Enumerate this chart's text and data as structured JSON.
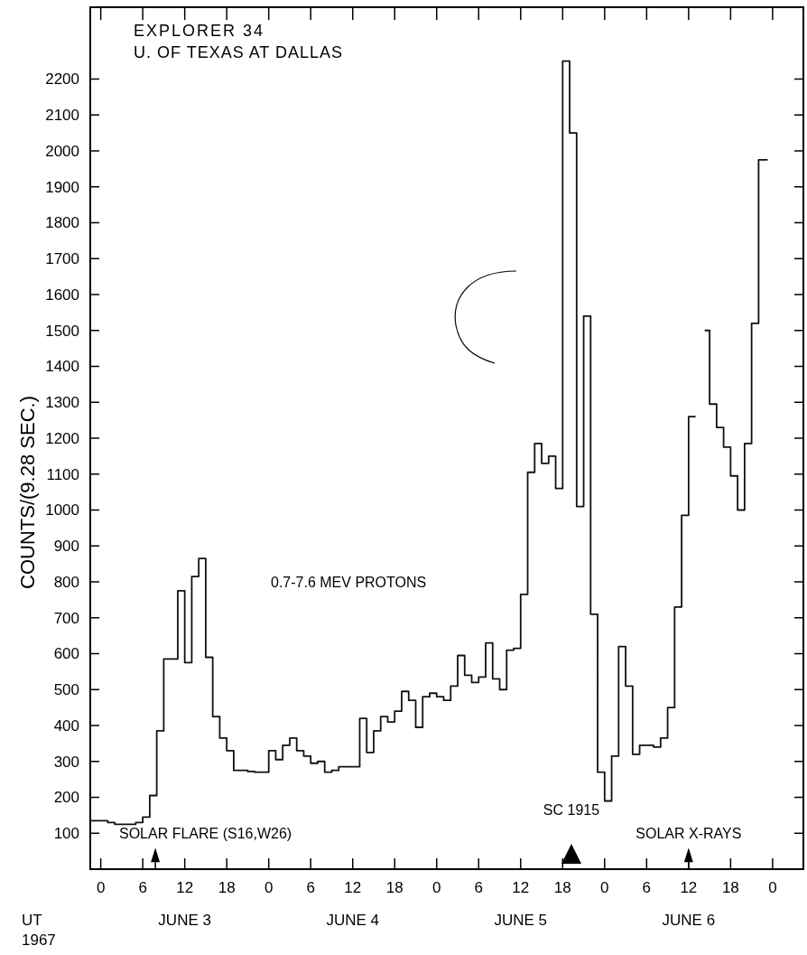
{
  "chart_data": {
    "type": "step",
    "title": "EXPLORER 34",
    "subtitle": "U. OF TEXAS AT DALLAS",
    "ylabel": "COUNTS/(9.28 SEC.)",
    "annotations": [
      "0.7-7.6 MEV PROTONS",
      "SOLAR FLARE (S16,W26)",
      "SC 1915",
      "SOLAR X-RAYS",
      "JUNE 3",
      "JUNE 4",
      "JUNE 5",
      "JUNE 6",
      "UT",
      "1967"
    ],
    "series": [
      {
        "color": "#111111",
        "x": [
          "1967-06-02T22:30",
          "1967-06-03T01:00",
          "1967-06-03T02:00",
          "1967-06-03T05:00",
          "1967-06-03T06:00",
          "1967-06-03T07:00",
          "1967-06-03T08:00",
          "1967-06-03T09:00",
          "1967-06-03T10:00",
          "1967-06-03T11:00",
          "1967-06-03T12:00",
          "1967-06-03T13:00",
          "1967-06-03T14:00",
          "1967-06-03T15:00",
          "1967-06-03T16:00",
          "1967-06-03T17:00",
          "1967-06-03T18:00",
          "1967-06-03T19:00",
          "1967-06-03T20:00",
          "1967-06-03T21:00",
          "1967-06-03T22:00",
          "1967-06-03T23:00",
          "1967-06-04T00:00",
          "1967-06-04T01:00",
          "1967-06-04T02:00",
          "1967-06-04T03:00",
          "1967-06-04T04:00",
          "1967-06-04T05:00",
          "1967-06-04T06:00",
          "1967-06-04T07:00",
          "1967-06-04T08:00",
          "1967-06-04T09:00",
          "1967-06-04T10:00",
          "1967-06-04T11:00",
          "1967-06-04T12:00",
          "1967-06-04T13:00",
          "1967-06-04T14:00",
          "1967-06-04T15:00",
          "1967-06-04T16:00",
          "1967-06-04T17:00",
          "1967-06-04T18:00",
          "1967-06-04T19:00",
          "1967-06-04T20:00",
          "1967-06-04T21:00",
          "1967-06-04T22:00",
          "1967-06-04T23:00",
          "1967-06-05T00:00",
          "1967-06-05T01:00",
          "1967-06-05T02:00",
          "1967-06-05T03:00",
          "1967-06-05T04:00",
          "1967-06-05T05:00",
          "1967-06-05T06:00",
          "1967-06-05T07:00",
          "1967-06-05T08:00",
          "1967-06-05T09:00",
          "1967-06-05T10:00",
          "1967-06-05T11:00",
          "1967-06-05T12:00",
          "1967-06-05T13:00",
          "1967-06-05T14:00",
          "1967-06-05T15:00",
          "1967-06-05T16:00",
          "1967-06-05T17:00",
          "1967-06-05T18:00",
          "1967-06-05T19:00",
          "1967-06-05T20:00",
          "1967-06-05T21:00",
          "1967-06-05T22:00",
          "1967-06-05T23:00",
          "1967-06-06T00:00",
          "1967-06-06T01:00",
          "1967-06-06T02:00",
          "1967-06-06T03:00",
          "1967-06-06T04:00",
          "1967-06-06T05:00",
          "1967-06-06T06:00",
          "1967-06-06T07:00",
          "1967-06-06T08:00",
          "1967-06-06T09:00",
          "1967-06-06T10:00",
          "1967-06-06T11:00",
          "1967-06-06T12:00",
          "1967-06-06T13:00"
        ],
        "values": [
          135,
          130,
          125,
          130,
          145,
          205,
          385,
          585,
          585,
          775,
          575,
          815,
          865,
          590,
          425,
          365,
          330,
          275,
          275,
          272,
          270,
          270,
          330,
          305,
          345,
          365,
          330,
          315,
          295,
          300,
          270,
          275,
          285,
          285,
          285,
          420,
          325,
          385,
          425,
          410,
          440,
          495,
          470,
          395,
          480,
          490,
          480,
          470,
          510,
          595,
          540,
          520,
          535,
          630,
          530,
          500,
          610,
          615,
          765,
          1105,
          1185,
          1130,
          1150,
          1060,
          2250,
          2050,
          1010,
          1540,
          710,
          270,
          190,
          315,
          620,
          510,
          320,
          345,
          345,
          340,
          365,
          450,
          730,
          985,
          1260,
          1260
        ]
      },
      {
        "color": "#111111",
        "x": [
          "1967-06-06T14:18",
          "1967-06-06T15:00",
          "1967-06-06T16:00",
          "1967-06-06T17:00",
          "1967-06-06T18:00",
          "1967-06-06T19:00",
          "1967-06-06T20:00",
          "1967-06-06T21:00",
          "1967-06-06T22:00",
          "1967-06-06T23:18"
        ],
        "values": [
          1500,
          1295,
          1230,
          1175,
          1095,
          1000,
          1185,
          1520,
          1975,
          1975
        ]
      }
    ],
    "xlim": [
      "1967-06-02T22:30",
      "1967-06-07T04:24"
    ],
    "ylim": [
      0,
      2400
    ],
    "xticks": [
      {
        "value": "1967-06-03T00:00",
        "label": "0"
      },
      {
        "value": "1967-06-03T06:00",
        "label": "6"
      },
      {
        "value": "1967-06-03T12:00",
        "label": "12"
      },
      {
        "value": "1967-06-03T18:00",
        "label": "18"
      },
      {
        "value": "1967-06-04T00:00",
        "label": "0"
      },
      {
        "value": "1967-06-04T06:00",
        "label": "6"
      },
      {
        "value": "1967-06-04T12:00",
        "label": "12"
      },
      {
        "value": "1967-06-04T18:00",
        "label": "18"
      },
      {
        "value": "1967-06-05T00:00",
        "label": "0"
      },
      {
        "value": "1967-06-05T06:00",
        "label": "6"
      },
      {
        "value": "1967-06-05T12:00",
        "label": "12"
      },
      {
        "value": "1967-06-05T18:00",
        "label": "18"
      },
      {
        "value": "1967-06-06T00:00",
        "label": "0"
      },
      {
        "value": "1967-06-06T06:00",
        "label": "6"
      },
      {
        "value": "1967-06-06T12:00",
        "label": "12"
      },
      {
        "value": "1967-06-06T18:00",
        "label": "18"
      },
      {
        "value": "1967-06-07T00:00",
        "label": "0"
      }
    ],
    "yticks": [
      100,
      200,
      300,
      400,
      500,
      600,
      700,
      800,
      900,
      1000,
      1100,
      1200,
      1300,
      1400,
      1500,
      1600,
      1700,
      1800,
      1900,
      2000,
      2100,
      2200
    ],
    "grid": false,
    "line_style": "solid",
    "marker": "none"
  }
}
